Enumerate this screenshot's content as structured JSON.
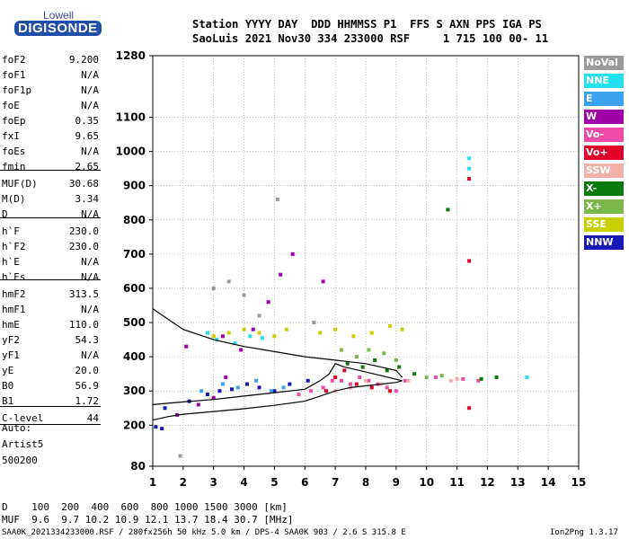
{
  "logo": {
    "line1": "Lowell",
    "line2": "DIGISONDE"
  },
  "header": {
    "row1": "Station YYYY DAY  DDD HHMMSS P1  FFS S AXN PPS IGA PS",
    "row2": "SaoLuis 2021 Nov30 334 233000 RSF     1 715 100 00- 11"
  },
  "params": [
    {
      "name": "foF2",
      "value": "9.200"
    },
    {
      "name": "foF1",
      "value": "N/A"
    },
    {
      "name": "foF1p",
      "value": "N/A"
    },
    {
      "name": "foE",
      "value": "N/A"
    },
    {
      "name": "foEp",
      "value": "0.35"
    },
    {
      "name": "fxI",
      "value": "9.65"
    },
    {
      "name": "foEs",
      "value": "N/A"
    },
    {
      "name": "fmin",
      "value": "2.65"
    },
    {
      "name": "MUF(D)",
      "value": "30.68"
    },
    {
      "name": "M(D)",
      "value": "3.34"
    },
    {
      "name": "D",
      "value": "N/A"
    },
    {
      "name": "h`F",
      "value": "230.0"
    },
    {
      "name": "h`F2",
      "value": "230.0"
    },
    {
      "name": "h`E",
      "value": "N/A"
    },
    {
      "name": "h`Es",
      "value": "N/A"
    },
    {
      "name": "hmF2",
      "value": "313.5"
    },
    {
      "name": "hmF1",
      "value": "N/A"
    },
    {
      "name": "hmE",
      "value": "110.0"
    },
    {
      "name": "yF2",
      "value": "54.3"
    },
    {
      "name": "yF1",
      "value": "N/A"
    },
    {
      "name": "yE",
      "value": "20.0"
    },
    {
      "name": "B0",
      "value": "56.9"
    },
    {
      "name": "B1",
      "value": "1.72"
    },
    {
      "name": "C-level",
      "value": "44"
    }
  ],
  "auto": {
    "line1": "Auto:",
    "line2": "Artist5",
    "line3": "500200"
  },
  "footer": {
    "d_row": "D    100  200  400  600  800 1000 1500 3000 [km]",
    "muf_row": "MUF  9.6  9.7 10.2 10.9 12.1 13.7 18.4 30.7 [MHz]",
    "file_row": "SAA0K_2021334233000.RSF / 280fx256h 50 kHz 5.0 km / DPS-4 SAA0K 903 / 2.6 S 315.8 E",
    "version": "Ion2Png 1.3.17"
  },
  "legend": [
    {
      "label": "NoVal",
      "color": "#9a9a9a"
    },
    {
      "label": "NNE",
      "color": "#22e0ee"
    },
    {
      "label": "E",
      "color": "#3aa0f0"
    },
    {
      "label": "W",
      "color": "#a000a8"
    },
    {
      "label": "Vo-",
      "color": "#f04aa8"
    },
    {
      "label": "Vo+",
      "color": "#e0002a"
    },
    {
      "label": "SSW",
      "color": "#f2b0a8"
    },
    {
      "label": "X-",
      "color": "#0a7a0a"
    },
    {
      "label": "X+",
      "color": "#7ab84a"
    },
    {
      "label": "SSE",
      "color": "#c8d000"
    },
    {
      "label": "NNW",
      "color": "#1818b8"
    }
  ],
  "chart_data": {
    "type": "scatter",
    "title": "",
    "xlabel": "",
    "ylabel": "",
    "xlim": [
      1,
      15
    ],
    "ylim": [
      80,
      1280
    ],
    "x_ticks": [
      1,
      2,
      3,
      4,
      5,
      6,
      7,
      8,
      9,
      10,
      11,
      12,
      13,
      14,
      15
    ],
    "y_ticks": [
      80,
      200,
      300,
      400,
      500,
      600,
      700,
      800,
      900,
      1000,
      1100,
      1280
    ],
    "grid": true,
    "legend_position": "right",
    "series": [
      {
        "name": "NNW",
        "color": "#1818b8",
        "points": [
          [
            1.4,
            250
          ],
          [
            2.2,
            270
          ],
          [
            2.8,
            290
          ],
          [
            3.2,
            300
          ],
          [
            3.6,
            305
          ],
          [
            4.1,
            320
          ],
          [
            4.5,
            310
          ],
          [
            5.0,
            300
          ],
          [
            5.5,
            320
          ],
          [
            6.1,
            330
          ],
          [
            1.1,
            195
          ],
          [
            1.3,
            190
          ]
        ]
      },
      {
        "name": "W",
        "color": "#a000a8",
        "points": [
          [
            1.8,
            230
          ],
          [
            2.5,
            260
          ],
          [
            3.0,
            280
          ],
          [
            3.4,
            340
          ],
          [
            3.9,
            420
          ],
          [
            4.3,
            480
          ],
          [
            4.8,
            560
          ],
          [
            5.2,
            640
          ],
          [
            5.6,
            700
          ],
          [
            6.6,
            620
          ],
          [
            2.1,
            430
          ],
          [
            3.3,
            460
          ]
        ]
      },
      {
        "name": "Vo-",
        "color": "#f04aa8",
        "points": [
          [
            5.8,
            290
          ],
          [
            6.2,
            300
          ],
          [
            6.6,
            310
          ],
          [
            6.9,
            330
          ],
          [
            7.2,
            330
          ],
          [
            7.5,
            320
          ],
          [
            7.8,
            340
          ],
          [
            8.1,
            330
          ],
          [
            8.4,
            320
          ],
          [
            8.7,
            310
          ],
          [
            9.0,
            300
          ],
          [
            9.3,
            330
          ],
          [
            10.3,
            340
          ],
          [
            11.2,
            335
          ],
          [
            11.7,
            330
          ]
        ]
      },
      {
        "name": "Vo+",
        "color": "#e0002a",
        "points": [
          [
            6.7,
            300
          ],
          [
            7.0,
            340
          ],
          [
            7.3,
            360
          ],
          [
            7.7,
            320
          ],
          [
            8.2,
            310
          ],
          [
            8.8,
            300
          ],
          [
            11.4,
            250
          ],
          [
            11.4,
            680
          ],
          [
            11.4,
            920
          ]
        ]
      },
      {
        "name": "SSE",
        "color": "#c8d000",
        "points": [
          [
            3.0,
            460
          ],
          [
            3.5,
            470
          ],
          [
            4.0,
            480
          ],
          [
            4.5,
            470
          ],
          [
            5.0,
            460
          ],
          [
            5.4,
            480
          ],
          [
            6.5,
            470
          ],
          [
            7.0,
            480
          ],
          [
            7.6,
            460
          ],
          [
            8.2,
            470
          ],
          [
            8.8,
            490
          ],
          [
            9.2,
            480
          ]
        ]
      },
      {
        "name": "X-",
        "color": "#0a7a0a",
        "points": [
          [
            7.4,
            380
          ],
          [
            7.9,
            370
          ],
          [
            8.3,
            390
          ],
          [
            8.7,
            360
          ],
          [
            9.1,
            370
          ],
          [
            9.6,
            350
          ],
          [
            10.7,
            830
          ],
          [
            11.8,
            335
          ],
          [
            12.3,
            340
          ]
        ]
      },
      {
        "name": "X+",
        "color": "#7ab84a",
        "points": [
          [
            7.2,
            420
          ],
          [
            7.7,
            400
          ],
          [
            8.1,
            420
          ],
          [
            8.6,
            410
          ],
          [
            9.0,
            390
          ],
          [
            10.0,
            340
          ],
          [
            10.5,
            345
          ]
        ]
      },
      {
        "name": "NNE",
        "color": "#22e0ee",
        "points": [
          [
            3.1,
            450
          ],
          [
            3.7,
            440
          ],
          [
            4.2,
            460
          ],
          [
            2.8,
            470
          ],
          [
            4.6,
            455
          ],
          [
            11.4,
            980
          ],
          [
            11.4,
            950
          ],
          [
            13.3,
            340
          ]
        ]
      },
      {
        "name": "E",
        "color": "#3aa0f0",
        "points": [
          [
            2.6,
            300
          ],
          [
            3.3,
            320
          ],
          [
            3.8,
            310
          ],
          [
            4.4,
            330
          ],
          [
            4.9,
            300
          ],
          [
            5.3,
            310
          ]
        ]
      },
      {
        "name": "SSW",
        "color": "#f2b0a8",
        "points": [
          [
            7.0,
            300
          ],
          [
            7.5,
            310
          ],
          [
            8.0,
            330
          ],
          [
            8.5,
            320
          ],
          [
            9.4,
            330
          ],
          [
            10.8,
            330
          ],
          [
            11.0,
            335
          ]
        ]
      },
      {
        "name": "NoVal",
        "color": "#9a9a9a",
        "points": [
          [
            1.9,
            110
          ],
          [
            3.0,
            600
          ],
          [
            3.5,
            620
          ],
          [
            4.0,
            580
          ],
          [
            4.5,
            520
          ],
          [
            6.3,
            500
          ],
          [
            5.1,
            860
          ]
        ]
      }
    ],
    "curves": [
      {
        "name": "o-trace profile",
        "points": [
          [
            1.0,
            215
          ],
          [
            1.5,
            225
          ],
          [
            2.0,
            232
          ],
          [
            3.0,
            240
          ],
          [
            4.0,
            248
          ],
          [
            5.0,
            258
          ],
          [
            6.0,
            270
          ],
          [
            6.5,
            285
          ],
          [
            7.0,
            300
          ],
          [
            7.5,
            310
          ],
          [
            8.0,
            315
          ],
          [
            8.5,
            320
          ],
          [
            9.0,
            325
          ],
          [
            9.2,
            330
          ]
        ]
      },
      {
        "name": "virtual height trace",
        "points": [
          [
            1.0,
            260
          ],
          [
            2.0,
            268
          ],
          [
            3.0,
            275
          ],
          [
            4.0,
            285
          ],
          [
            5.0,
            295
          ],
          [
            6.0,
            305
          ],
          [
            6.5,
            330
          ],
          [
            6.8,
            350
          ],
          [
            7.0,
            380
          ],
          [
            7.3,
            370
          ],
          [
            7.8,
            360
          ],
          [
            8.5,
            345
          ],
          [
            9.2,
            330
          ]
        ]
      },
      {
        "name": "upper trace",
        "points": [
          [
            1.0,
            540
          ],
          [
            1.5,
            510
          ],
          [
            2.0,
            480
          ],
          [
            3.0,
            450
          ],
          [
            4.0,
            430
          ],
          [
            5.0,
            415
          ],
          [
            6.0,
            400
          ],
          [
            6.5,
            395
          ],
          [
            7.0,
            390
          ],
          [
            8.0,
            380
          ],
          [
            9.0,
            360
          ],
          [
            9.2,
            340
          ]
        ]
      }
    ]
  }
}
